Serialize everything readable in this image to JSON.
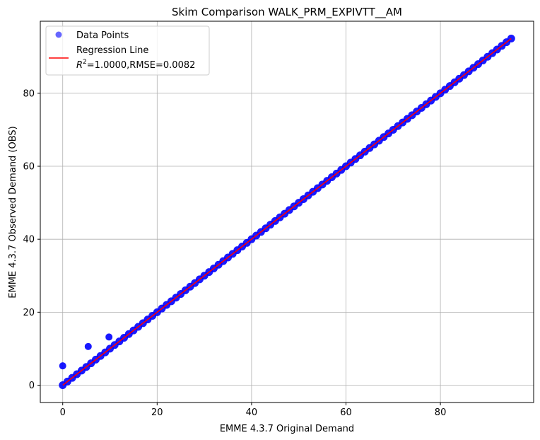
{
  "chart_data": {
    "type": "scatter",
    "title": "Skim Comparison WALK_PRM_EXPIVTT__AM",
    "xlabel": "EMME 4.3.7 Original Demand",
    "ylabel": "EMME 4.3.7 Observed Demand (OBS)",
    "xlim": [
      -4.75,
      99.75
    ],
    "ylim": [
      -4.75,
      99.75
    ],
    "xticks": [
      0,
      20,
      40,
      60,
      80
    ],
    "yticks": [
      0,
      20,
      40,
      60,
      80
    ],
    "grid": true,
    "legend_placement": "top-left",
    "series": [
      {
        "name": "Data Points",
        "kind": "scatter",
        "color": "#0000ff",
        "main_line": {
          "x_start": 0,
          "x_end": 95,
          "step": 1,
          "slope": 1,
          "intercept": 0
        },
        "outliers": [
          [
            0,
            5.3
          ],
          [
            5.4,
            10.6
          ],
          [
            9.8,
            13.2
          ]
        ]
      },
      {
        "name": "Regression Line",
        "kind": "line",
        "color": "#ff0000",
        "slope": 1.0,
        "intercept": 0.0,
        "x_range": [
          0,
          95
        ]
      }
    ],
    "legend": {
      "data_points": "Data Points",
      "regression_line": "Regression Line",
      "r2_label": "R",
      "r2_sup": "2",
      "stats": "=1.0000,RMSE=0.0082"
    }
  }
}
